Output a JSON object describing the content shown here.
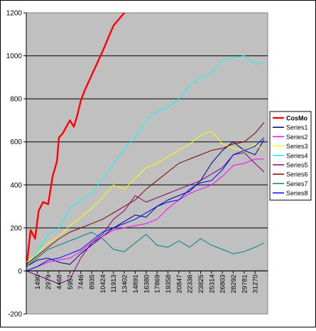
{
  "chart_data": {
    "type": "line",
    "title": "",
    "xlabel": "",
    "ylabel": "",
    "ylim": [
      -200,
      1200
    ],
    "yticks": [
      -200,
      0,
      200,
      400,
      600,
      800,
      1000,
      1200
    ],
    "xticks": [
      "1490",
      "2979",
      "4468",
      "5957",
      "7446",
      "8935",
      "10424",
      "11913",
      "13402",
      "14891",
      "16380",
      "17869",
      "19358",
      "20847",
      "22336",
      "23825",
      "25314",
      "26803",
      "28292",
      "29781",
      "31270"
    ],
    "xlim": [
      0,
      33000
    ],
    "plot_background": "#c0c0c0",
    "gridlines": "horizontal",
    "legend_position": "right",
    "series": [
      {
        "name": "CosMo",
        "color": "#ff0000",
        "width": 2.4,
        "x": [
          0,
          600,
          1200,
          1700,
          2300,
          3000,
          3600,
          4200,
          4468,
          5000,
          5957,
          6500,
          6950,
          7446,
          8000,
          8935,
          10424,
          11913,
          13402,
          13900,
          14891
        ],
        "y": [
          10,
          190,
          150,
          280,
          320,
          310,
          440,
          510,
          620,
          640,
          700,
          670,
          720,
          790,
          840,
          910,
          1020,
          1140,
          1200,
          1240,
          1290
        ]
      },
      {
        "name": "Series1",
        "color": "#000080",
        "width": 1,
        "x": [
          0,
          1490,
          2979,
          4468,
          5957,
          7446,
          8935,
          10424,
          11913,
          13402,
          14891,
          16380,
          17869,
          19358,
          20847,
          22336,
          23825,
          25314,
          26803,
          28292,
          29781,
          31270,
          32500
        ],
        "y": [
          20,
          50,
          60,
          40,
          30,
          80,
          120,
          160,
          200,
          230,
          260,
          250,
          300,
          330,
          350,
          370,
          420,
          500,
          560,
          600,
          560,
          540,
          610
        ]
      },
      {
        "name": "Series2",
        "color": "#ff00ff",
        "width": 1,
        "x": [
          0,
          1490,
          2979,
          4468,
          5957,
          7446,
          8935,
          10424,
          11913,
          13402,
          14891,
          16380,
          17869,
          19358,
          20847,
          22336,
          23825,
          25314,
          26803,
          28292,
          29781,
          31270,
          32500
        ],
        "y": [
          0,
          20,
          40,
          50,
          60,
          90,
          130,
          160,
          190,
          200,
          210,
          220,
          240,
          290,
          330,
          360,
          380,
          400,
          440,
          490,
          500,
          520,
          520
        ]
      },
      {
        "name": "Series3",
        "color": "#ffff00",
        "width": 1,
        "x": [
          0,
          1490,
          2979,
          4468,
          5957,
          7446,
          8935,
          10424,
          11913,
          13402,
          14891,
          16380,
          17869,
          19358,
          20847,
          22336,
          23825,
          25314,
          26803,
          28292,
          29781,
          31270,
          32500
        ],
        "y": [
          40,
          80,
          130,
          160,
          210,
          250,
          290,
          340,
          400,
          380,
          430,
          480,
          500,
          530,
          560,
          590,
          630,
          650,
          590,
          570,
          560,
          590,
          560
        ]
      },
      {
        "name": "Series4",
        "color": "#00ffff",
        "width": 1,
        "x": [
          0,
          1490,
          2979,
          4468,
          5957,
          7446,
          8935,
          10424,
          11913,
          13402,
          14891,
          16380,
          17869,
          19358,
          20847,
          22336,
          23825,
          25314,
          26803,
          28292,
          29781,
          31270,
          32500
        ],
        "y": [
          10,
          90,
          170,
          200,
          290,
          330,
          360,
          430,
          500,
          570,
          620,
          700,
          740,
          760,
          800,
          860,
          900,
          920,
          980,
          990,
          1000,
          960,
          970
        ]
      },
      {
        "name": "Series5",
        "color": "#800080",
        "width": 1,
        "x": [
          0,
          1490,
          2979,
          4468,
          5957,
          7446,
          8935,
          10424,
          11913,
          13402,
          14891,
          16380,
          17869,
          19358,
          20847,
          22336,
          23825,
          25314,
          26803,
          28292,
          29781,
          31270,
          32500
        ],
        "y": [
          0,
          -20,
          -40,
          -60,
          -40,
          60,
          130,
          170,
          240,
          280,
          350,
          320,
          340,
          360,
          380,
          400,
          420,
          450,
          480,
          540,
          550,
          500,
          460
        ]
      },
      {
        "name": "Series6",
        "color": "#800000",
        "width": 1,
        "x": [
          0,
          1490,
          2979,
          4468,
          5957,
          7446,
          8935,
          10424,
          11913,
          13402,
          14891,
          16380,
          17869,
          19358,
          20847,
          22336,
          23825,
          25314,
          26803,
          28292,
          29781,
          31270,
          32500
        ],
        "y": [
          30,
          70,
          110,
          150,
          180,
          200,
          220,
          240,
          270,
          300,
          330,
          380,
          420,
          460,
          500,
          520,
          540,
          560,
          570,
          590,
          600,
          640,
          690
        ]
      },
      {
        "name": "Series7",
        "color": "#008080",
        "width": 1,
        "x": [
          0,
          1490,
          2979,
          4468,
          5957,
          7446,
          8935,
          10424,
          11913,
          13402,
          14891,
          16380,
          17869,
          19358,
          20847,
          22336,
          23825,
          25314,
          26803,
          28292,
          29781,
          31270,
          32500
        ],
        "y": [
          20,
          60,
          100,
          120,
          140,
          160,
          180,
          150,
          100,
          90,
          130,
          170,
          120,
          110,
          140,
          110,
          150,
          120,
          100,
          80,
          90,
          110,
          130
        ]
      },
      {
        "name": "Series8",
        "color": "#0000ff",
        "width": 1,
        "x": [
          0,
          1490,
          2979,
          4468,
          5957,
          7446,
          8935,
          10424,
          11913,
          13402,
          14891,
          16380,
          17869,
          19358,
          20847,
          22336,
          23825,
          25314,
          26803,
          28292,
          29781,
          31270,
          32500
        ],
        "y": [
          0,
          20,
          50,
          60,
          80,
          100,
          140,
          180,
          200,
          220,
          240,
          270,
          300,
          320,
          330,
          380,
          410,
          420,
          470,
          540,
          560,
          580,
          620
        ]
      }
    ]
  }
}
